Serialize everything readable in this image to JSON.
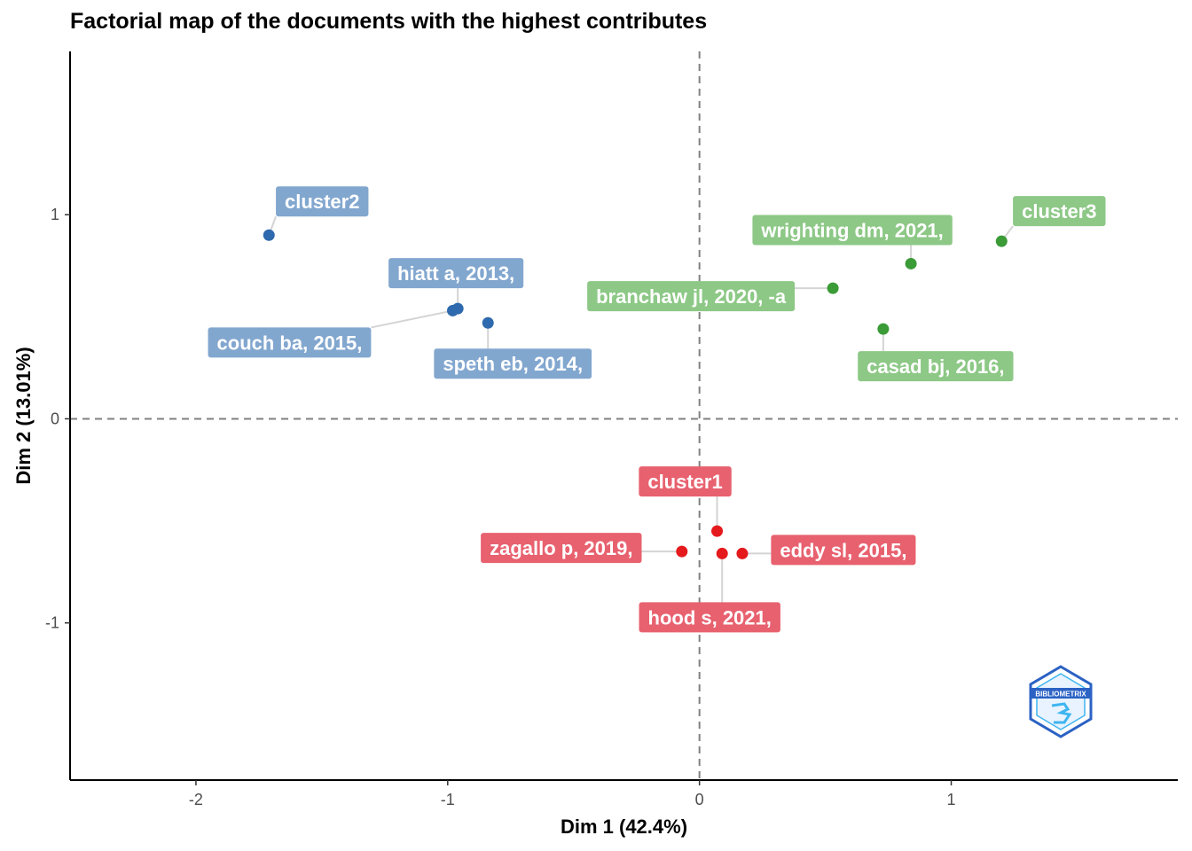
{
  "chart_data": {
    "type": "scatter",
    "title": "Factorial map of the documents with the highest contributes",
    "xlabel": "Dim 1 (42.4%)",
    "ylabel": "Dim 2 (13.01%)",
    "xlim": [
      -2.5,
      1.9
    ],
    "ylim": [
      -1.77,
      1.8
    ],
    "xticks": [
      {
        "value": -2,
        "label": "-2"
      },
      {
        "value": -1,
        "label": "-1"
      },
      {
        "value": 0,
        "label": "0"
      },
      {
        "value": 1,
        "label": "1"
      }
    ],
    "yticks": [
      {
        "value": -1,
        "label": "-1"
      },
      {
        "value": 0,
        "label": "0"
      },
      {
        "value": 1,
        "label": "1"
      }
    ],
    "reference_lines": {
      "x": 0,
      "y": 0,
      "style": "dashed"
    },
    "clusters": [
      {
        "name": "cluster1",
        "point_color": "#e41a1c",
        "label_color": "#e8616f",
        "points": [
          {
            "label": "cluster1",
            "x": 0.07,
            "y": -0.55
          },
          {
            "label": "zagallo p, 2019,",
            "x": -0.07,
            "y": -0.65
          },
          {
            "label": "hood s, 2021,",
            "x": 0.09,
            "y": -0.66
          },
          {
            "label": "eddy sl, 2015,",
            "x": 0.17,
            "y": -0.66
          }
        ]
      },
      {
        "name": "cluster2",
        "point_color": "#2e6aad",
        "label_color": "#82a7cf",
        "points": [
          {
            "label": "cluster2",
            "x": -1.71,
            "y": 0.9
          },
          {
            "label": "hiatt a, 2013,",
            "x": -0.96,
            "y": 0.54
          },
          {
            "label": "couch ba, 2015,",
            "x": -0.98,
            "y": 0.53
          },
          {
            "label": "speth eb, 2014,",
            "x": -0.84,
            "y": 0.47
          }
        ]
      },
      {
        "name": "cluster3",
        "point_color": "#3a9b37",
        "label_color": "#8dc886",
        "points": [
          {
            "label": "cluster3",
            "x": 1.2,
            "y": 0.87
          },
          {
            "label": "wrighting dm, 2021,",
            "x": 0.84,
            "y": 0.76
          },
          {
            "label": "branchaw jl, 2020, -a",
            "x": 0.53,
            "y": 0.64
          },
          {
            "label": "casad bj, 2016,",
            "x": 0.73,
            "y": 0.44
          }
        ]
      }
    ],
    "logo_text": "BIBLIOMETRIX"
  }
}
